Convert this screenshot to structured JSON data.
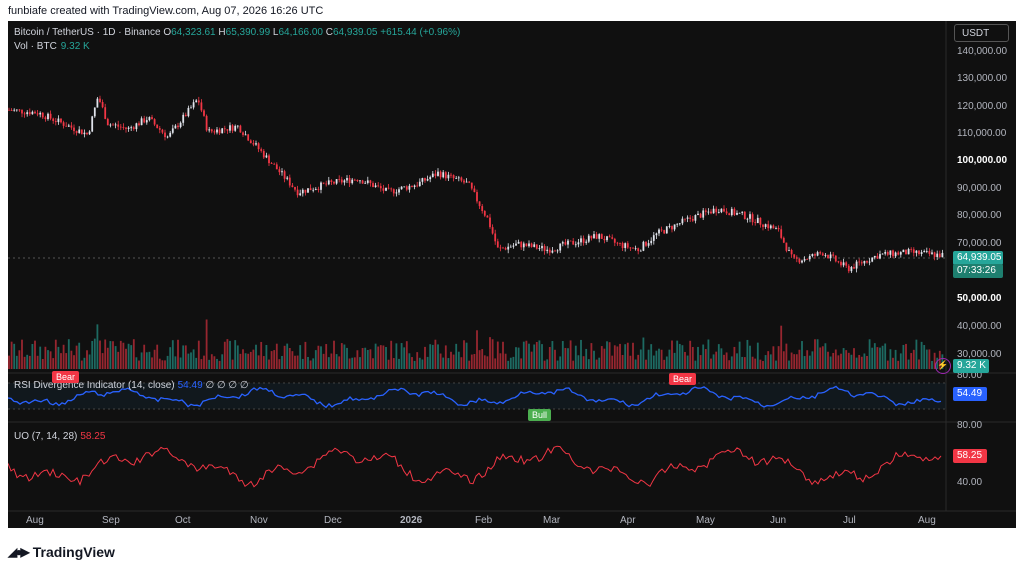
{
  "caption": "funbiafe created with TradingView.com, Aug 07, 2026 16:26 UTC",
  "header": {
    "symbol": "Bitcoin / TetherUS · 1D · Binance",
    "o_label": "O",
    "o_value": "64,323.61",
    "h_label": "H",
    "h_value": "65,390.99",
    "l_label": "L",
    "l_value": "64,166.00",
    "c_label": "C",
    "c_value": "64,939.05",
    "change": "+615.44 (+0.96%)"
  },
  "volume": {
    "label": "Vol · BTC",
    "value": "9.32 K",
    "tag": "9.32 K"
  },
  "currency_button": "USDT",
  "price_axis": [
    "140,000.00",
    "130,000.00",
    "120,000.00",
    "110,000.00",
    "100,000.00",
    "90,000.00",
    "80,000.00",
    "70,000.00",
    "50,000.00",
    "40,000.00",
    "30,000.00"
  ],
  "price_tag": {
    "value": "64,939.05",
    "countdown": "07:33:26"
  },
  "rsi": {
    "label": "RSI Divergence Indicator (14, close)",
    "value": "54.49",
    "glyphs": "∅ ∅ ∅ ∅",
    "axis_top": "80.00",
    "tag": "54.49",
    "bear1": "Bear",
    "bear2": "Bear",
    "bull": "Bull"
  },
  "uo": {
    "label": "UO (7, 14, 28)",
    "value": "58.25",
    "axis_top": "80.00",
    "axis_mid": "40.00",
    "tag": "58.25"
  },
  "time_axis": [
    "Aug",
    "Sep",
    "Oct",
    "Nov",
    "Dec",
    "2026",
    "Feb",
    "Mar",
    "Apr",
    "May",
    "Jun",
    "Jul",
    "Aug"
  ],
  "brand": "TradingView",
  "colors": {
    "up": "#26a69a",
    "down": "#f23645",
    "rsi": "#2962ff",
    "uo": "#f23645",
    "bg": "#101010"
  },
  "chart_data": {
    "type": "line",
    "title": "Bitcoin / TetherUS · 1D · Binance",
    "x": [
      "Aug",
      "Sep",
      "Oct",
      "Nov",
      "Dec",
      "2026",
      "Feb",
      "Mar",
      "Apr",
      "May",
      "Jun",
      "Jul",
      "Aug"
    ],
    "series": [
      {
        "name": "Bitcoin / TetherUS",
        "values": [
          118000,
          115000,
          113000,
          108000,
          90000,
          88000,
          95000,
          67000,
          70000,
          75000,
          82000,
          64000,
          64939
        ]
      }
    ],
    "ylim": [
      25000,
      145000
    ]
  }
}
